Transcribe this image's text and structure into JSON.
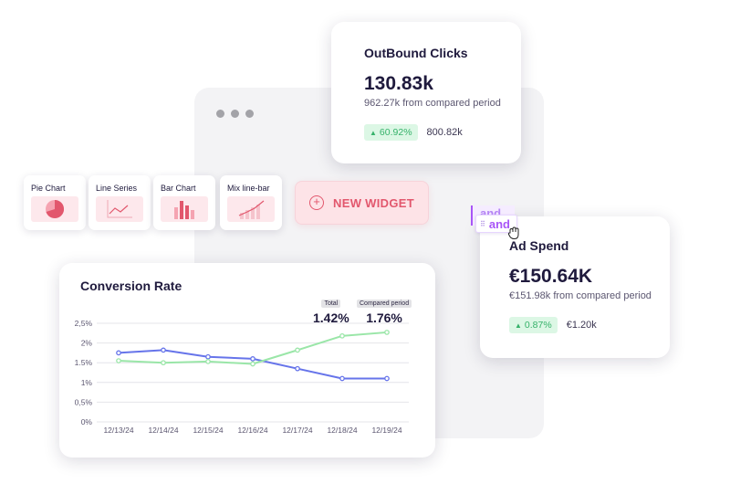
{
  "outbound_clicks": {
    "title": "OutBound Clicks",
    "value": "130.83k",
    "subtitle": "962.27k from compared period",
    "change": "60.92%",
    "previous": "800.82k"
  },
  "ad_spend": {
    "title": "Ad Spend",
    "value": "€150.64K",
    "subtitle": "€151.98k from compared period",
    "change": "0.87%",
    "previous": "€1.20k"
  },
  "widgets": [
    {
      "label": "Pie Chart",
      "icon": "pie-chart-icon"
    },
    {
      "label": "Line Series",
      "icon": "line-chart-icon"
    },
    {
      "label": "Bar Chart",
      "icon": "bar-chart-icon"
    },
    {
      "label": "Mix line-bar",
      "icon": "mix-chart-icon"
    }
  ],
  "new_widget": {
    "label": "NEW WIDGET"
  },
  "tag": {
    "ghost_label": "and",
    "label": "and"
  },
  "colors": {
    "accent": "#e2576d",
    "widget_bg": "#fde8ec",
    "positive": "#36b26a",
    "tag": "#a855f7"
  },
  "chart_data": {
    "type": "line",
    "title": "Conversion Rate",
    "x": [
      "12/13/24",
      "12/14/24",
      "12/15/24",
      "12/16/24",
      "12/17/24",
      "12/18/24",
      "12/19/24"
    ],
    "yticks": [
      "0%",
      "0,5%",
      "1%",
      "1.5%",
      "2%",
      "2,5%"
    ],
    "ylim": [
      0,
      2.5
    ],
    "grid": true,
    "series": [
      {
        "color": "#6674ea",
        "values": [
          1.75,
          1.82,
          1.65,
          1.6,
          1.35,
          1.1,
          1.1
        ]
      },
      {
        "color": "#9ae6a8",
        "values": [
          1.55,
          1.5,
          1.53,
          1.47,
          1.82,
          2.18,
          2.27
        ]
      }
    ],
    "metrics": [
      {
        "label": "Total",
        "value": "1.42%"
      },
      {
        "label": "Compared period",
        "value": "1.76%"
      }
    ]
  }
}
